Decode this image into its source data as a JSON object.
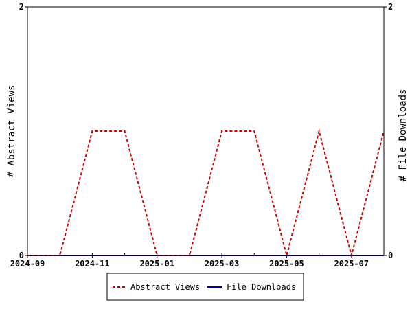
{
  "chart_data": {
    "type": "line",
    "x": [
      "2024-09",
      "2024-10",
      "2024-11",
      "2024-12",
      "2025-01",
      "2025-02",
      "2025-03",
      "2025-04",
      "2025-05",
      "2025-06",
      "2025-07",
      "2025-08"
    ],
    "x_tick_labels": [
      "2024-09",
      "2024-11",
      "2025-01",
      "2025-03",
      "2025-05",
      "2025-07"
    ],
    "series": [
      {
        "name": "Abstract Views",
        "axis": "left",
        "color": "#cc0000",
        "style": "dashed",
        "values": [
          0,
          0,
          1,
          1,
          0,
          0,
          1,
          1,
          0,
          1,
          0,
          1
        ]
      },
      {
        "name": "File Downloads",
        "axis": "right",
        "color": "#000099",
        "style": "solid",
        "values": [
          0,
          0,
          0,
          0,
          0,
          0,
          0,
          0,
          0,
          0,
          0,
          0
        ]
      }
    ],
    "ylabel": "# Abstract Views",
    "y2label": "# File Downloads",
    "ylim": [
      0,
      2
    ],
    "y2lim": [
      0,
      2
    ],
    "y_ticks": [
      "0",
      "2"
    ],
    "y2_ticks": [
      "0",
      "2"
    ],
    "grid": false,
    "legend_position": "bottom"
  }
}
